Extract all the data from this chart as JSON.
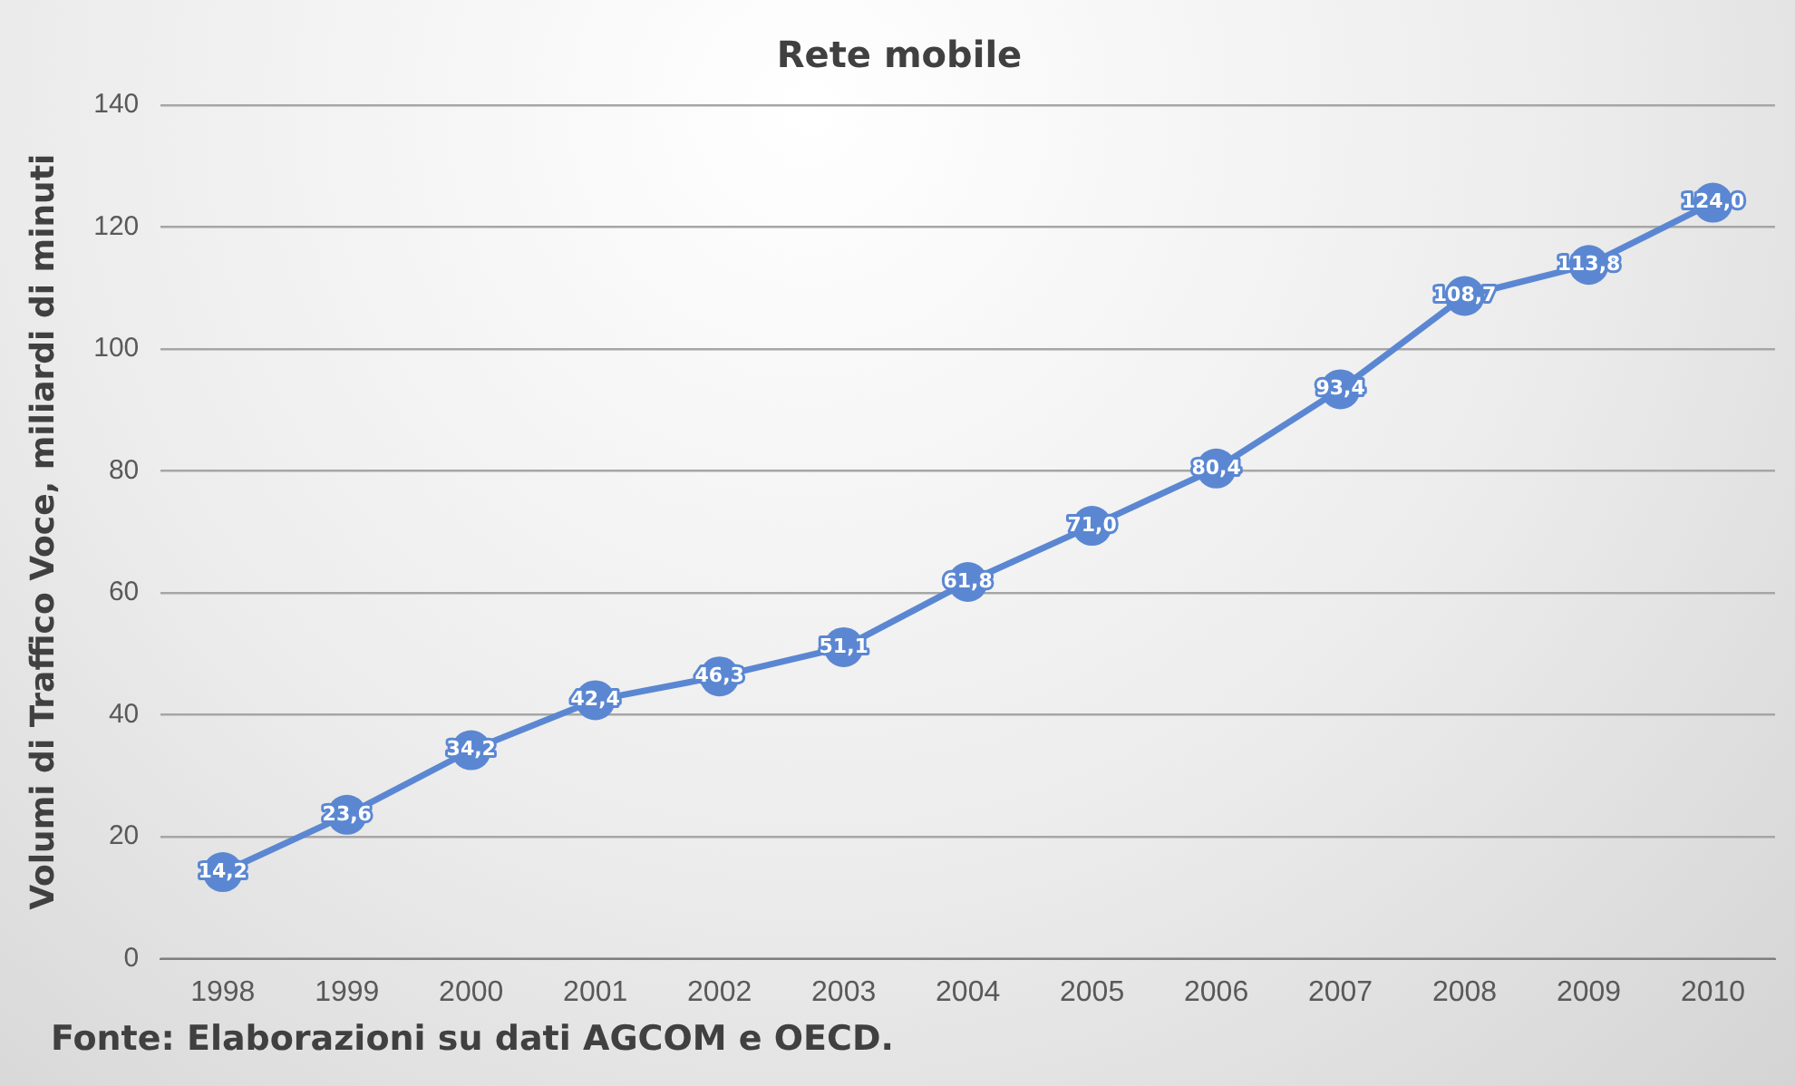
{
  "chart_data": {
    "type": "line",
    "title": "Rete mobile",
    "ylabel": "Volumi di Traffico Voce, miliardi di minuti",
    "categories": [
      "1998",
      "1999",
      "2000",
      "2001",
      "2002",
      "2003",
      "2004",
      "2005",
      "2006",
      "2007",
      "2008",
      "2009",
      "2010"
    ],
    "series": [
      {
        "color": "#5b87d2",
        "values": [
          14.2,
          23.6,
          34.2,
          42.4,
          46.3,
          51.1,
          61.8,
          71.0,
          80.4,
          93.4,
          108.7,
          113.8,
          124.0
        ],
        "value_labels": [
          "14,2",
          "23,6",
          "34,2",
          "42,4",
          "46,3",
          "51,1",
          "61,8",
          "71,0",
          "80,4",
          "93,4",
          "108,7",
          "113,8",
          "124,0"
        ]
      }
    ],
    "ylim": [
      0,
      140
    ],
    "yticks": [
      0,
      20,
      40,
      60,
      80,
      100,
      120,
      140
    ],
    "grid": "y",
    "legend": false,
    "marker": "circle",
    "line_style": "solid",
    "annotations": [
      "Fonte: Elaborazioni su dati AGCOM e OECD."
    ]
  }
}
